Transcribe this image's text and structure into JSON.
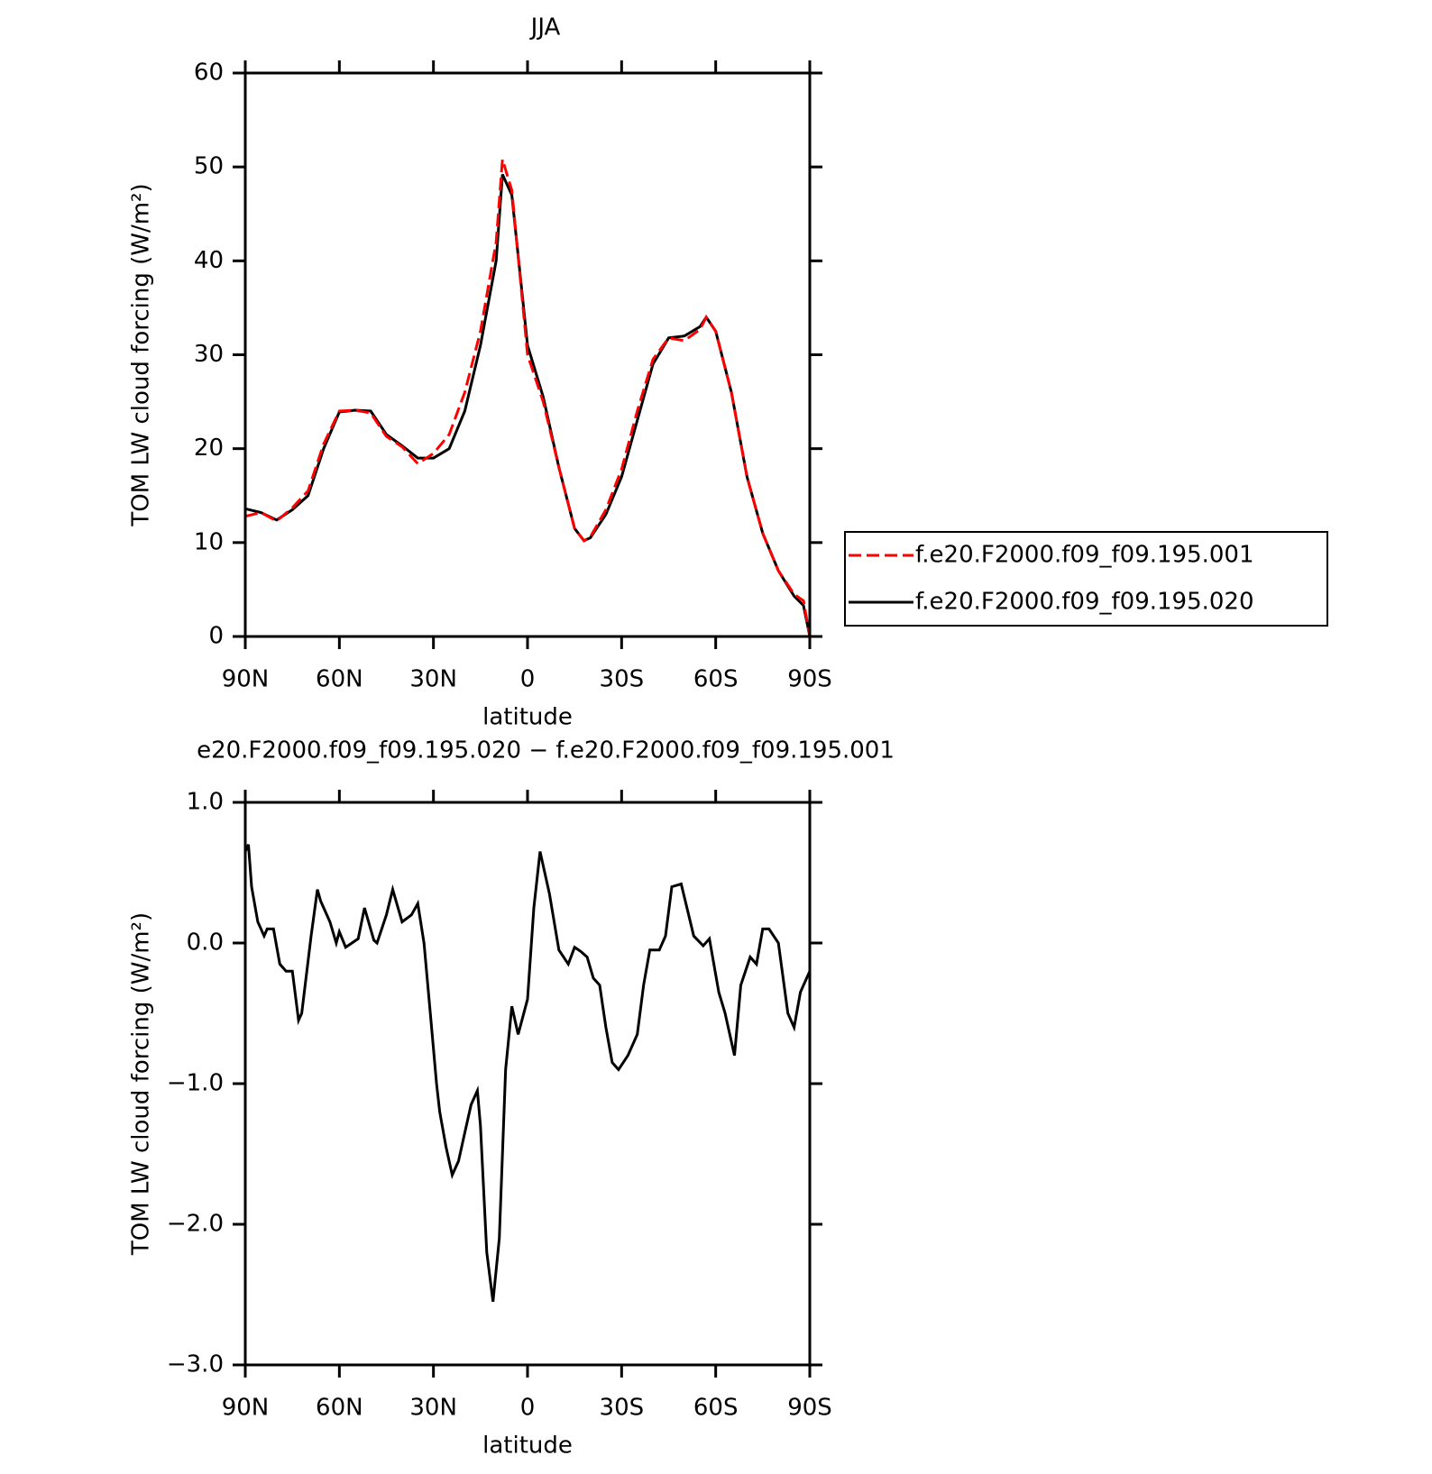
{
  "chart_data": [
    {
      "type": "line",
      "title": "JJA",
      "xlabel": "latitude",
      "ylabel": "TOM LW cloud forcing (W/m²)",
      "x": [
        90,
        85,
        80,
        75,
        70,
        65,
        60,
        55,
        50,
        45,
        40,
        35,
        30,
        25,
        20,
        15,
        10,
        8,
        5,
        0,
        -5,
        -10,
        -15,
        -18,
        -20,
        -25,
        -30,
        -35,
        -40,
        -45,
        -50,
        -55,
        -57,
        -60,
        -65,
        -70,
        -75,
        -80,
        -85,
        -88,
        -90
      ],
      "series": [
        {
          "name": "f.e20.F2000.f09_f09.195.001",
          "color": "#ff0000",
          "dash": "dashed",
          "values": [
            12.8,
            13.2,
            12.3,
            13.7,
            15.5,
            20.5,
            24.0,
            24.1,
            23.8,
            21.3,
            20.2,
            18.4,
            19.5,
            21.5,
            26,
            32.5,
            42,
            50.8,
            47.5,
            30,
            25,
            18,
            11.5,
            10.2,
            10.6,
            13.5,
            17.8,
            24,
            29.5,
            31.8,
            31.5,
            32.7,
            34,
            32.5,
            26,
            17,
            11,
            7,
            4.5,
            3.8,
            0
          ]
        },
        {
          "name": "f.e20.F2000.f09_f09.195.020",
          "color": "#000000",
          "dash": "solid",
          "values": [
            13.6,
            13.2,
            12.4,
            13.5,
            15,
            20,
            23.9,
            24.1,
            24,
            21.5,
            20.3,
            19,
            19,
            20,
            24,
            31,
            40,
            49.2,
            47,
            31,
            25.5,
            18,
            11.5,
            10.2,
            10.5,
            13,
            17,
            23,
            29,
            31.8,
            32,
            33,
            34,
            32.5,
            26,
            17,
            11,
            7,
            4.3,
            3.3,
            0
          ]
        }
      ],
      "xlim": [
        90,
        -90
      ],
      "xticks": [
        {
          "value": 90,
          "label": "90N"
        },
        {
          "value": 60,
          "label": "60N"
        },
        {
          "value": 30,
          "label": "30N"
        },
        0,
        {
          "value": -30,
          "label": "30S"
        },
        {
          "value": -60,
          "label": "60S"
        },
        {
          "value": -90,
          "label": "90S"
        }
      ],
      "ylim": [
        0,
        60
      ],
      "yticks": [
        0,
        10,
        20,
        30,
        40,
        50,
        60
      ],
      "legend": "right"
    },
    {
      "type": "line",
      "title": "e20.F2000.f09_f09.195.020 − f.e20.F2000.f09_f09.195.001",
      "xlabel": "latitude",
      "ylabel": "TOM LW cloud forcing (W/m²)",
      "x": [
        90,
        89,
        88,
        86,
        84,
        83,
        81,
        79,
        77,
        75,
        73,
        72,
        69,
        67,
        66,
        63,
        61,
        60,
        58,
        54,
        52,
        49,
        48,
        45,
        43,
        40,
        37,
        35,
        33,
        31,
        29,
        28,
        26,
        24,
        22,
        20,
        18,
        16,
        15,
        13,
        11,
        9,
        7,
        5,
        3,
        0,
        -2,
        -4,
        -7,
        -10,
        -13,
        -15,
        -17,
        -19,
        -21,
        -23,
        -25,
        -27,
        -29,
        -32,
        -35,
        -37,
        -39,
        -42,
        -44,
        -46,
        -49,
        -53,
        -56,
        -58,
        -61,
        -63,
        -66,
        -68,
        -71,
        -73,
        -75,
        -77,
        -80,
        -83,
        -85,
        -87,
        -90
      ],
      "values": [
        0.65,
        0.7,
        0.4,
        0.15,
        0.05,
        0.1,
        0.1,
        -0.15,
        -0.2,
        -0.2,
        -0.55,
        -0.5,
        0.05,
        0.38,
        0.3,
        0.15,
        0,
        0.08,
        -0.03,
        0.03,
        0.25,
        0.02,
        0,
        0.2,
        0.38,
        0.15,
        0.2,
        0.28,
        0,
        -0.5,
        -1,
        -1.2,
        -1.45,
        -1.65,
        -1.55,
        -1.35,
        -1.15,
        -1.05,
        -1.3,
        -2.2,
        -2.55,
        -2.1,
        -0.9,
        -0.45,
        -0.65,
        -0.4,
        0.25,
        0.65,
        0.35,
        -0.05,
        -0.15,
        -0.03,
        -0.06,
        -0.1,
        -0.25,
        -0.3,
        -0.6,
        -0.85,
        -0.9,
        -0.8,
        -0.65,
        -0.3,
        -0.05,
        -0.05,
        0.05,
        0.4,
        0.42,
        0.05,
        -0.02,
        0.03,
        -0.35,
        -0.5,
        -0.8,
        -0.3,
        -0.1,
        -0.15,
        0.1,
        0.1,
        0,
        -0.5,
        -0.6,
        -0.35,
        -0.2
      ],
      "color": "#000000",
      "xlim": [
        90,
        -90
      ],
      "xticks": [
        {
          "value": 90,
          "label": "90N"
        },
        {
          "value": 60,
          "label": "60N"
        },
        {
          "value": 30,
          "label": "30N"
        },
        0,
        {
          "value": -30,
          "label": "30S"
        },
        {
          "value": -60,
          "label": "60S"
        },
        {
          "value": -90,
          "label": "90S"
        }
      ],
      "ylim": [
        -3,
        1
      ],
      "yticks": [
        {
          "value": -3,
          "label": "−3.0"
        },
        {
          "value": -2,
          "label": "−2.0"
        },
        {
          "value": -1,
          "label": "−1.0"
        },
        {
          "value": 0,
          "label": "0.0"
        },
        {
          "value": 1,
          "label": "1.0"
        }
      ]
    }
  ]
}
